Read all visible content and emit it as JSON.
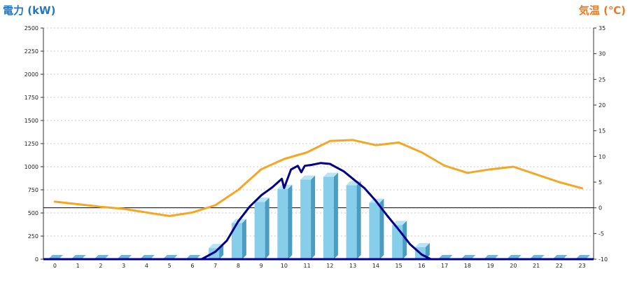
{
  "chart_data": {
    "type": "bar",
    "left_axis_title": "電力 (kW)",
    "right_axis_title": "気温 (℃)",
    "categories": [
      "0",
      "1",
      "2",
      "3",
      "4",
      "5",
      "6",
      "7",
      "8",
      "9",
      "10",
      "11",
      "12",
      "13",
      "14",
      "15",
      "16",
      "17",
      "18",
      "19",
      "20",
      "21",
      "22",
      "23"
    ],
    "ylim_left": [
      0,
      2500
    ],
    "yticks_left": [
      0,
      250,
      500,
      750,
      1000,
      1250,
      1500,
      1750,
      2000,
      2250,
      2500
    ],
    "ylim_right": [
      -10,
      35
    ],
    "yticks_right": [
      -10,
      -5,
      0,
      5,
      10,
      15,
      20,
      25,
      30,
      35
    ],
    "grid": true,
    "series": [
      {
        "type": "bar",
        "axis": "left",
        "color": "#87ceeb",
        "values": [
          0,
          0,
          0,
          0,
          0,
          0,
          0,
          120,
          390,
          620,
          760,
          860,
          890,
          800,
          610,
          370,
          130,
          0,
          0,
          0,
          0,
          0,
          0,
          0
        ]
      },
      {
        "type": "line",
        "axis": "left",
        "color": "#00008b",
        "x": [
          6.4,
          7.0,
          7.5,
          8.0,
          8.5,
          9.0,
          9.5,
          9.9,
          10.0,
          10.3,
          10.6,
          10.75,
          10.9,
          11.2,
          11.6,
          12.0,
          12.3,
          12.6,
          13.0,
          13.5,
          14.0,
          14.5,
          15.0,
          15.5,
          16.0,
          16.4
        ],
        "y": [
          0,
          80,
          200,
          410,
          570,
          690,
          780,
          870,
          770,
          970,
          1010,
          940,
          1010,
          1020,
          1040,
          1030,
          990,
          950,
          870,
          770,
          630,
          470,
          320,
          160,
          50,
          0
        ]
      },
      {
        "type": "line",
        "axis": "right",
        "color": "#f5a623",
        "x": [
          0,
          1,
          2,
          3,
          4,
          5,
          6,
          7,
          8,
          9,
          10,
          11,
          12,
          13,
          14,
          15,
          16,
          17,
          18,
          19,
          20,
          21,
          22,
          23
        ],
        "y": [
          1.2,
          0.7,
          0.2,
          -0.2,
          -0.9,
          -1.6,
          -0.9,
          0.5,
          3.5,
          7.5,
          9.5,
          10.8,
          13,
          13.2,
          12.2,
          12.7,
          10.8,
          8.2,
          6.8,
          7.5,
          8.0,
          6.5,
          5.0,
          3.8
        ]
      }
    ]
  }
}
